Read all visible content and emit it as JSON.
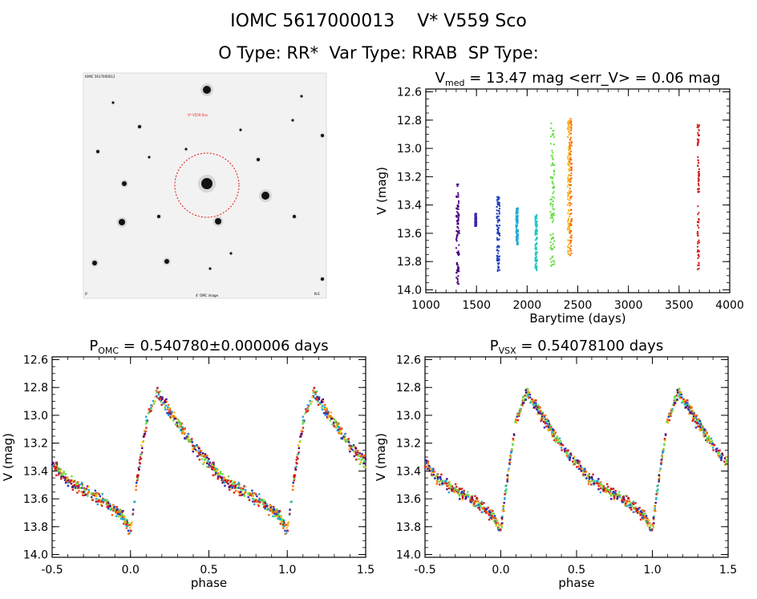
{
  "header": {
    "line1": "IOMC 5617000013    V* V559 Sco",
    "line2": "O Type: RR*  Var Type: RRAB  SP Type:"
  },
  "image_panel": {
    "top_left_label": "IOMC 5617000013",
    "target_label": "V* V559 Sco",
    "bottom_left_label": "0'",
    "bottom_center_label": "4' OMC image",
    "bottom_right_label": "N E"
  },
  "chart_data": [
    {
      "id": "lightcurve",
      "type": "scatter",
      "title_parts": [
        "V",
        "med",
        " = 13.47 mag <err_V> = 0.06 mag"
      ],
      "xlabel": "Barytime (days)",
      "ylabel": "V (mag)",
      "xlim": [
        1000,
        4000
      ],
      "ylim": [
        14.02,
        12.58
      ],
      "y_inverted": true,
      "xticks": [
        1000,
        1500,
        2000,
        2500,
        3000,
        3500,
        4000
      ],
      "yticks": [
        12.6,
        12.8,
        13.0,
        13.2,
        13.4,
        13.6,
        13.8,
        14.0
      ],
      "ytick_labels": [
        "12.6",
        "12.8",
        "13.0",
        "13.2",
        "13.4",
        "13.6",
        "13.8",
        "14.0"
      ],
      "series": [
        {
          "color": "#4b0082",
          "x_range": [
            1300,
            1330
          ],
          "y_range": [
            13.25,
            13.96
          ]
        },
        {
          "color": "#3c2aa8",
          "x_range": [
            1485,
            1500
          ],
          "y_range": [
            13.46,
            13.55
          ]
        },
        {
          "color": "#1f3fbf",
          "x_range": [
            1700,
            1730
          ],
          "y_range": [
            13.34,
            13.88
          ]
        },
        {
          "color": "#21a8d6",
          "x_range": [
            1890,
            1910
          ],
          "y_range": [
            13.42,
            13.68
          ]
        },
        {
          "color": "#22c8c8",
          "x_range": [
            2080,
            2100
          ],
          "y_range": [
            13.47,
            13.88
          ]
        },
        {
          "color": "#66dd44",
          "x_range": [
            2230,
            2270
          ],
          "y_range": [
            12.82,
            13.86
          ]
        },
        {
          "color": "#f2b818",
          "x_range": [
            2400,
            2420
          ],
          "y_range": [
            12.8,
            13.78
          ]
        },
        {
          "color": "#ff6a00",
          "x_range": [
            2420,
            2440
          ],
          "y_range": [
            12.79,
            13.76
          ]
        },
        {
          "color": "#d42020",
          "x_range": [
            3680,
            3700
          ],
          "y_range": [
            12.83,
            13.86
          ]
        }
      ]
    },
    {
      "id": "phase-omc",
      "type": "scatter",
      "title_parts": [
        "P",
        "OMC",
        " = 0.540780±0.000006 days"
      ],
      "xlabel": "phase",
      "ylabel": "V (mag)",
      "xlim": [
        -0.5,
        1.5
      ],
      "ylim": [
        14.02,
        12.58
      ],
      "y_inverted": true,
      "xticks": [
        -0.5,
        0.0,
        0.5,
        1.0,
        1.5
      ],
      "xtick_labels": [
        "-0.5",
        "0.0",
        "0.5",
        "1.0",
        "1.5"
      ],
      "yticks": [
        12.6,
        12.8,
        13.0,
        13.2,
        13.4,
        13.6,
        13.8,
        14.0
      ],
      "ytick_labels": [
        "12.6",
        "12.8",
        "13.0",
        "13.2",
        "13.4",
        "13.6",
        "13.8",
        "14.0"
      ],
      "template": [
        [
          0.0,
          13.83
        ],
        [
          0.03,
          13.55
        ],
        [
          0.1,
          13.05
        ],
        [
          0.17,
          12.83
        ],
        [
          0.25,
          12.97
        ],
        [
          0.4,
          13.22
        ],
        [
          0.6,
          13.47
        ],
        [
          0.8,
          13.6
        ],
        [
          0.95,
          13.72
        ],
        [
          1.0,
          13.83
        ]
      ]
    },
    {
      "id": "phase-vsx",
      "type": "scatter",
      "title_parts": [
        "P",
        "VSX",
        " = 0.54078100 days"
      ],
      "xlabel": "phase",
      "ylabel": "V (mag)",
      "xlim": [
        -0.5,
        1.5
      ],
      "ylim": [
        14.02,
        12.58
      ],
      "y_inverted": true,
      "xticks": [
        -0.5,
        0.0,
        0.5,
        1.0,
        1.5
      ],
      "xtick_labels": [
        "-0.5",
        "0.0",
        "0.5",
        "1.0",
        "1.5"
      ],
      "yticks": [
        12.6,
        12.8,
        13.0,
        13.2,
        13.4,
        13.6,
        13.8,
        14.0
      ],
      "ytick_labels": [
        "12.6",
        "12.8",
        "13.0",
        "13.2",
        "13.4",
        "13.6",
        "13.8",
        "14.0"
      ],
      "template": [
        [
          0.0,
          13.83
        ],
        [
          0.03,
          13.55
        ],
        [
          0.1,
          13.05
        ],
        [
          0.17,
          12.83
        ],
        [
          0.25,
          12.97
        ],
        [
          0.4,
          13.22
        ],
        [
          0.6,
          13.47
        ],
        [
          0.8,
          13.6
        ],
        [
          0.95,
          13.72
        ],
        [
          1.0,
          13.83
        ]
      ]
    }
  ],
  "phase_point_colors": [
    "#d42020",
    "#ff6a00",
    "#f2b818",
    "#66dd44",
    "#66dd44",
    "#d42020",
    "#21a8d6",
    "#1f3fbf",
    "#4b0082"
  ]
}
